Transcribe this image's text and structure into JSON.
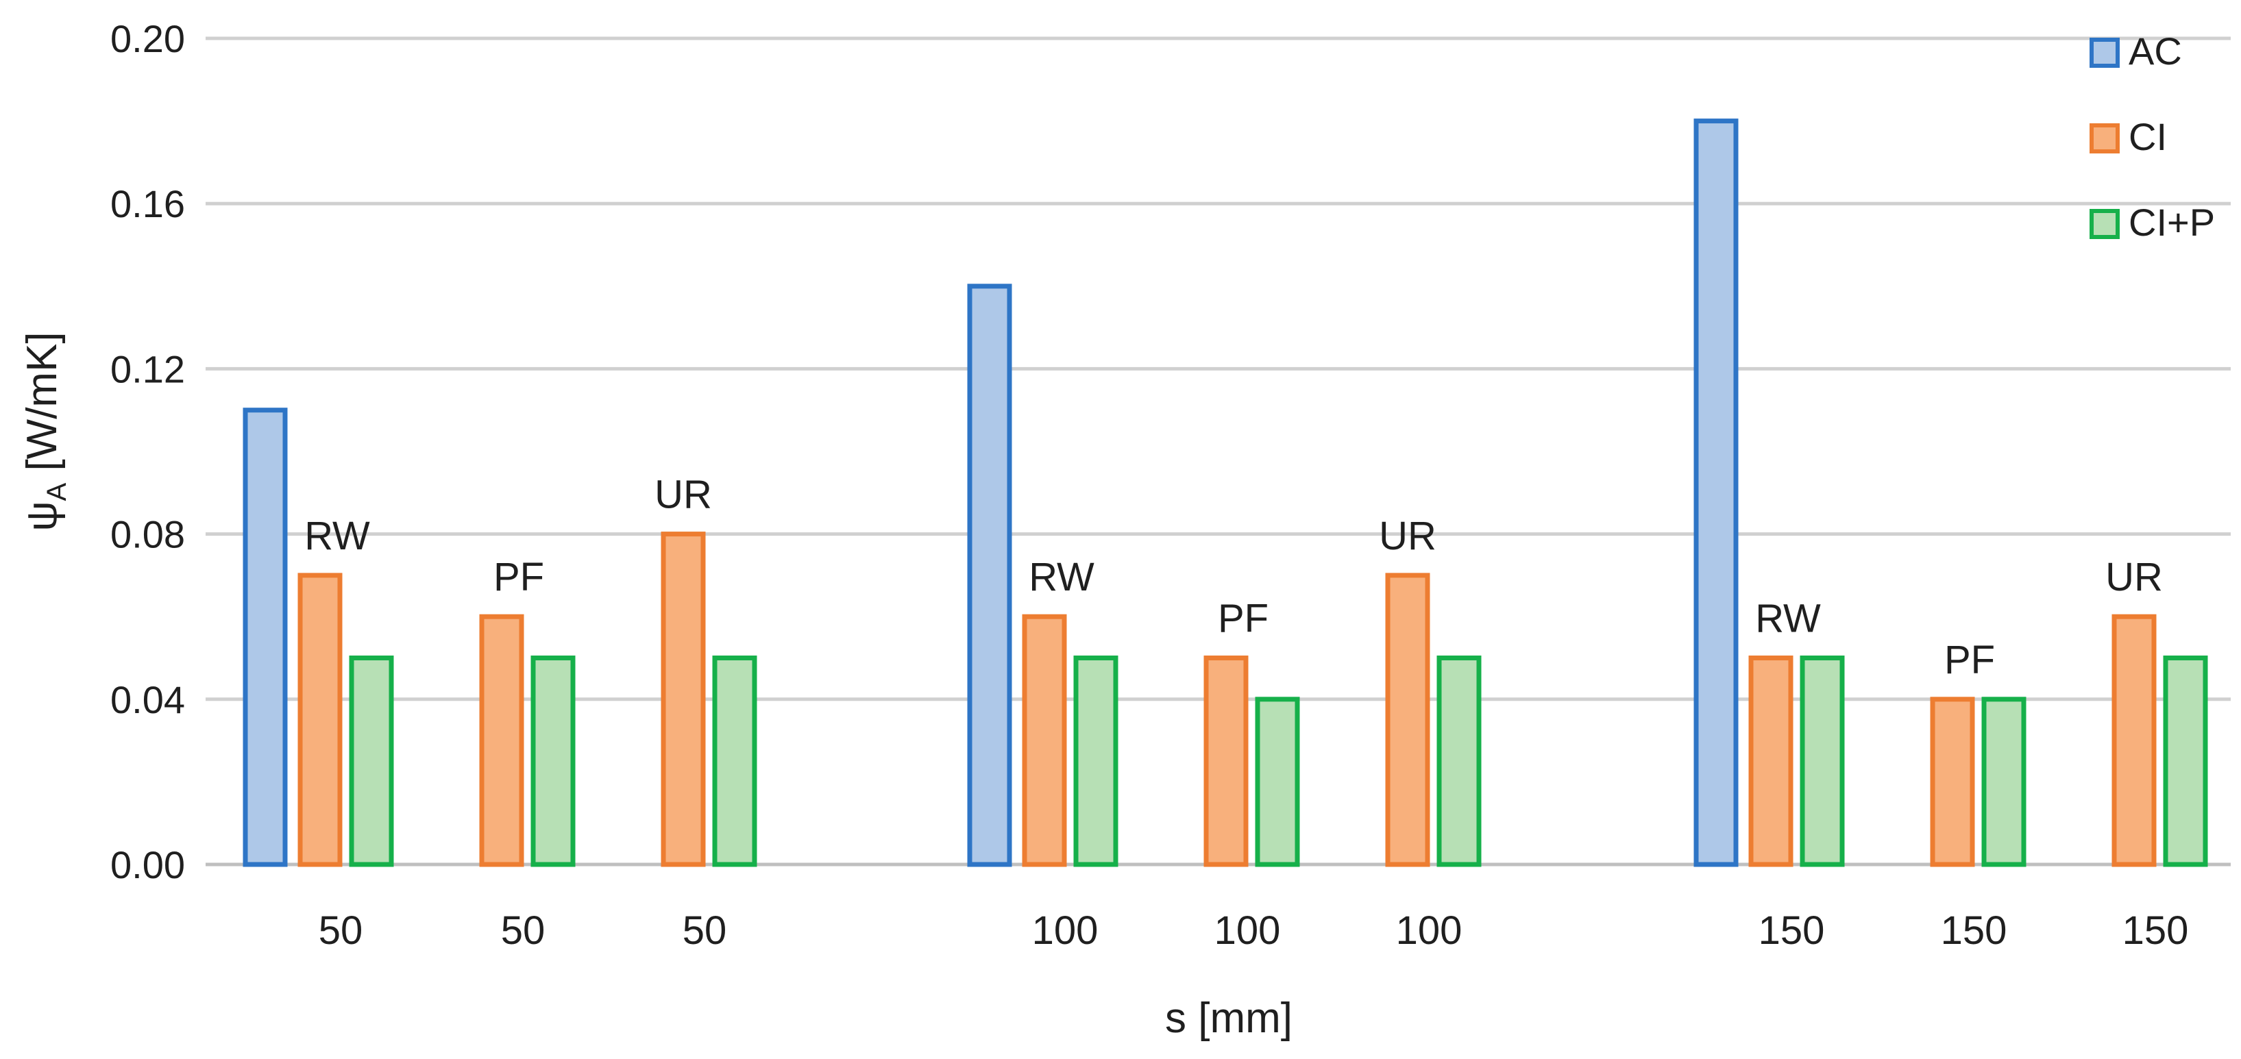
{
  "chart_data": {
    "type": "bar",
    "ylim": [
      0,
      0.2
    ],
    "yticks": [
      "0.00",
      "0.04",
      "0.08",
      "0.12",
      "0.16",
      "0.20"
    ],
    "ylabel": {
      "main": "ψ",
      "sub": "A",
      "unit": " [W/mK]"
    },
    "xlabel": "s [mm]",
    "legend_position": "top-right",
    "grid": true,
    "colors": {
      "AC": {
        "fill": "#aec8e8",
        "stroke": "#2e75c6"
      },
      "CI": {
        "fill": "#f8b07c",
        "stroke": "#ed7d31"
      },
      "CI+P": {
        "fill": "#b7e0b5",
        "stroke": "#16b04a"
      }
    },
    "legend": [
      "AC",
      "CI",
      "CI+P"
    ],
    "groups": [
      {
        "ac": 0.11,
        "subgroups": [
          {
            "material": "RW",
            "thickness": "50",
            "CI": 0.07,
            "CI+P": 0.05
          },
          {
            "material": "PF",
            "thickness": "50",
            "CI": 0.06,
            "CI+P": 0.05
          },
          {
            "material": "UR",
            "thickness": "50",
            "CI": 0.08,
            "CI+P": 0.05
          }
        ]
      },
      {
        "ac": 0.14,
        "subgroups": [
          {
            "material": "RW",
            "thickness": "100",
            "CI": 0.06,
            "CI+P": 0.05
          },
          {
            "material": "PF",
            "thickness": "100",
            "CI": 0.05,
            "CI+P": 0.04
          },
          {
            "material": "UR",
            "thickness": "100",
            "CI": 0.07,
            "CI+P": 0.05
          }
        ]
      },
      {
        "ac": 0.18,
        "subgroups": [
          {
            "material": "RW",
            "thickness": "150",
            "CI": 0.05,
            "CI+P": 0.05
          },
          {
            "material": "PF",
            "thickness": "150",
            "CI": 0.04,
            "CI+P": 0.04
          },
          {
            "material": "UR",
            "thickness": "150",
            "CI": 0.06,
            "CI+P": 0.05
          }
        ]
      }
    ]
  }
}
